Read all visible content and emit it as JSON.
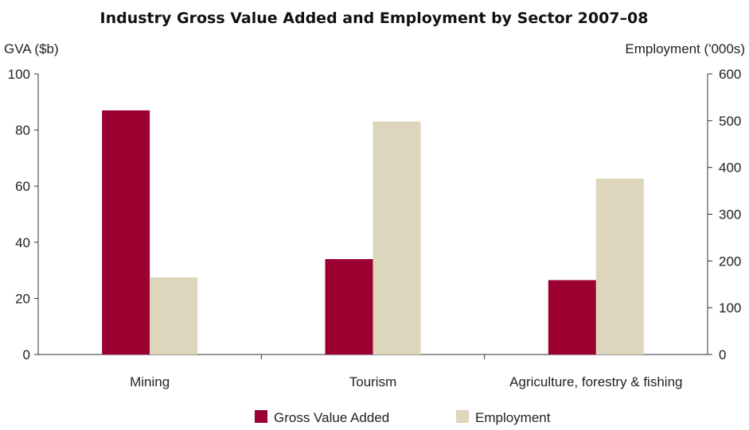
{
  "chart_data": {
    "type": "bar",
    "title": "Industry Gross Value Added and Employment by Sector 2007–08",
    "categories": [
      "Mining",
      "Tourism",
      "Agriculture, forestry & fishing"
    ],
    "y_left": {
      "label": "GVA ($b)",
      "range": [
        0,
        100
      ],
      "ticks": [
        0,
        20,
        40,
        60,
        80,
        100
      ]
    },
    "y_right": {
      "label": "Employment ('000s)",
      "range": [
        0,
        600
      ],
      "ticks": [
        0,
        100,
        200,
        300,
        400,
        500,
        600
      ]
    },
    "series": [
      {
        "name": "Gross Value Added",
        "axis": "left",
        "color": "#9B0031",
        "values": [
          87,
          34,
          26.5
        ]
      },
      {
        "name": "Employment",
        "axis": "right",
        "color": "#DDD6BC",
        "values": [
          165,
          498,
          376
        ]
      }
    ],
    "legend_position": "bottom",
    "grid": false
  }
}
